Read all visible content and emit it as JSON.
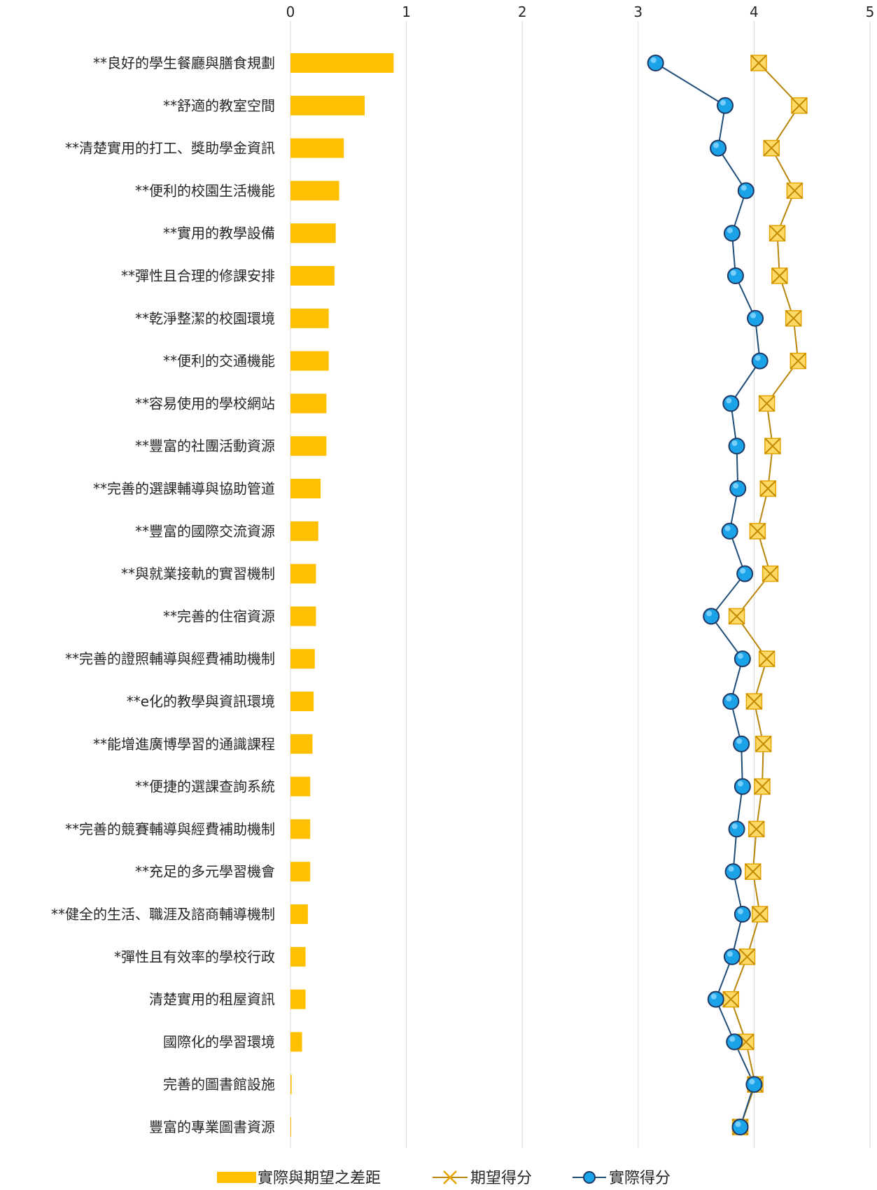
{
  "chart_data": {
    "type": "bar",
    "categories": [
      "**良好的學生餐廳與膳食規劃",
      "**舒適的教室空間",
      "**清楚實用的打工、獎助學金資訊",
      "**便利的校園生活機能",
      "**實用的教學設備",
      "**彈性且合理的修課安排",
      "**乾淨整潔的校園環境",
      "**便利的交通機能",
      "**容易使用的學校網站",
      "**豐富的社團活動資源",
      "**完善的選課輔導與協助管道",
      "**豐富的國際交流資源",
      "**與就業接軌的實習機制",
      "**完善的住宿資源",
      "**完善的證照輔導與經費補助機制",
      "**e化的教學與資訊環境",
      "**能增進廣博學習的通識課程",
      "**便捷的選課查詢系統",
      "**完善的競賽輔導與經費補助機制",
      "**充足的多元學習機會",
      "**健全的生活、職涯及諮商輔導機制",
      "*彈性且有效率的學校行政",
      "清楚實用的租屋資訊",
      "國際化的學習環境",
      "完善的圖書館設施",
      "豐富的專業圖書資源"
    ],
    "series": [
      {
        "name": "實際與期望之差距",
        "kind": "bar",
        "color": "#ffc000",
        "values": [
          0.89,
          0.64,
          0.46,
          0.42,
          0.39,
          0.38,
          0.33,
          0.33,
          0.31,
          0.31,
          0.26,
          0.24,
          0.22,
          0.22,
          0.21,
          0.2,
          0.19,
          0.17,
          0.17,
          0.17,
          0.15,
          0.13,
          0.13,
          0.1,
          0.01,
          0.0
        ]
      },
      {
        "name": "期望得分",
        "kind": "line",
        "marker": "x-square",
        "color": "#b8860b",
        "values": [
          4.04,
          4.39,
          4.15,
          4.35,
          4.2,
          4.22,
          4.34,
          4.38,
          4.11,
          4.16,
          4.12,
          4.03,
          4.14,
          3.85,
          4.11,
          4.0,
          4.08,
          4.07,
          4.02,
          3.99,
          4.05,
          3.94,
          3.8,
          3.93,
          4.01,
          3.88
        ]
      },
      {
        "name": "實際得分",
        "kind": "line",
        "marker": "circle",
        "color": "#1f4e79",
        "values": [
          3.15,
          3.75,
          3.69,
          3.93,
          3.81,
          3.84,
          4.01,
          4.05,
          3.8,
          3.85,
          3.86,
          3.79,
          3.92,
          3.63,
          3.9,
          3.8,
          3.89,
          3.9,
          3.85,
          3.82,
          3.9,
          3.81,
          3.67,
          3.83,
          4.0,
          3.88
        ]
      }
    ],
    "x_axis": {
      "position": "top",
      "range": [
        0,
        5
      ],
      "ticks": [
        "0",
        "1",
        "2",
        "3",
        "4",
        "5"
      ]
    },
    "grid": true,
    "legend": {
      "position": "bottom",
      "entries": [
        "實際與期望之差距",
        "期望得分",
        "實際得分"
      ]
    }
  }
}
